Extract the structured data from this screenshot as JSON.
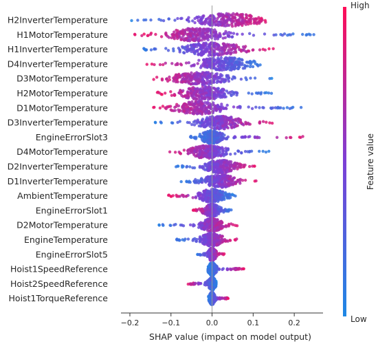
{
  "chart_data": {
    "type": "scatter",
    "subtype": "shap-beeswarm",
    "xlabel": "SHAP value (impact on model output)",
    "xlim": [
      -0.215,
      0.27
    ],
    "xticks": [
      -0.2,
      -0.1,
      0.0,
      0.1,
      0.2
    ],
    "xtick_labels": [
      "−0.2",
      "−0.1",
      "0.0",
      "0.1",
      "0.2"
    ],
    "zero_line": 0.0,
    "colorbar": {
      "label": "Feature value",
      "high_label": "High",
      "low_label": "Low",
      "low_color": "#1e88e5",
      "high_color": "#ff0d57"
    },
    "features": [
      {
        "name": "H2InverterTemperature",
        "min": -0.2,
        "max": 0.15,
        "peak": 0.04,
        "width": 0.12,
        "color_trend": 1
      },
      {
        "name": "H1MotorTemperature",
        "min": -0.19,
        "max": 0.26,
        "peak": -0.04,
        "width": 0.11,
        "color_trend": -1
      },
      {
        "name": "H1InverterTemperature",
        "min": -0.18,
        "max": 0.15,
        "peak": 0.0,
        "width": 0.11,
        "color_trend": 1
      },
      {
        "name": "D4InverterTemperature",
        "min": -0.16,
        "max": 0.13,
        "peak": 0.03,
        "width": 0.1,
        "color_trend": -1
      },
      {
        "name": "D3MotorTemperature",
        "min": -0.15,
        "max": 0.15,
        "peak": -0.03,
        "width": 0.1,
        "color_trend": -1
      },
      {
        "name": "H2MotorTemperature",
        "min": -0.14,
        "max": 0.15,
        "peak": -0.02,
        "width": 0.09,
        "color_trend": -1
      },
      {
        "name": "D1MotorTemperature",
        "min": -0.16,
        "max": 0.23,
        "peak": -0.03,
        "width": 0.09,
        "color_trend": -1
      },
      {
        "name": "D3InverterTemperature",
        "min": -0.14,
        "max": 0.16,
        "peak": 0.02,
        "width": 0.08,
        "color_trend": 1
      },
      {
        "name": "EngineErrorSlot3",
        "min": -0.06,
        "max": 0.24,
        "peak": 0.0,
        "width": 0.04,
        "color_trend": 1
      },
      {
        "name": "D4MotorTemperature",
        "min": -0.12,
        "max": 0.14,
        "peak": -0.01,
        "width": 0.07,
        "color_trend": -1
      },
      {
        "name": "D2InverterTemperature",
        "min": -0.09,
        "max": 0.11,
        "peak": 0.02,
        "width": 0.06,
        "color_trend": 1
      },
      {
        "name": "D1InverterTemperature",
        "min": -0.08,
        "max": 0.11,
        "peak": 0.02,
        "width": 0.06,
        "color_trend": 1
      },
      {
        "name": "AmbientTemperature",
        "min": -0.11,
        "max": 0.06,
        "peak": 0.0,
        "width": 0.05,
        "color_trend": -1
      },
      {
        "name": "EngineErrorSlot1",
        "min": -0.05,
        "max": 0.05,
        "peak": 0.0,
        "width": 0.03,
        "color_trend": -1
      },
      {
        "name": "D2MotorTemperature",
        "min": -0.13,
        "max": 0.07,
        "peak": 0.0,
        "width": 0.04,
        "color_trend": 1
      },
      {
        "name": "EngineTemperature",
        "min": -0.09,
        "max": 0.07,
        "peak": 0.0,
        "width": 0.04,
        "color_trend": 1
      },
      {
        "name": "EngineErrorSlot5",
        "min": -0.04,
        "max": 0.03,
        "peak": 0.0,
        "width": 0.015,
        "color_trend": 1
      },
      {
        "name": "Hoist1SpeedReference",
        "min": -0.01,
        "max": 0.08,
        "peak": 0.0,
        "width": 0.015,
        "color_trend": 1
      },
      {
        "name": "Hoist2SpeedReference",
        "min": -0.06,
        "max": 0.01,
        "peak": 0.0,
        "width": 0.015,
        "color_trend": -1
      },
      {
        "name": "Hoist1TorqueReference",
        "min": -0.01,
        "max": 0.04,
        "peak": 0.0,
        "width": 0.01,
        "color_trend": 1
      }
    ]
  }
}
